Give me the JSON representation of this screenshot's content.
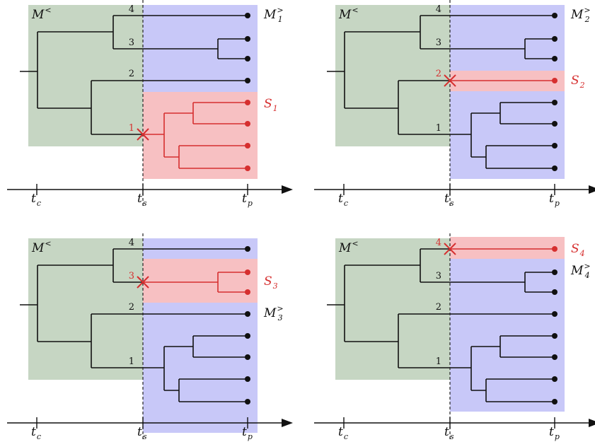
{
  "colors": {
    "past_region": "#c6d6c3",
    "future_region": "#c8c8f8",
    "split_region": "#f7c0c2",
    "lineage": "#111111",
    "split_lineage": "#d62f2f"
  },
  "axis": {
    "labels": [
      {
        "base": "t",
        "sub": "c"
      },
      {
        "base": "t",
        "sub": "s"
      },
      {
        "base": "t",
        "sub": "p"
      }
    ]
  },
  "panels": [
    {
      "past_label": {
        "base": "M",
        "sup": "<"
      },
      "split_lineage": 1,
      "split_label": {
        "base": "S",
        "sub": "1"
      },
      "future_label": {
        "base": "M",
        "sup": ">",
        "sub": "1"
      },
      "branch_numbers": [
        "4",
        "3",
        "2",
        "1"
      ]
    },
    {
      "past_label": {
        "base": "M",
        "sup": "<"
      },
      "split_lineage": 2,
      "split_label": {
        "base": "S",
        "sub": "2"
      },
      "future_label": {
        "base": "M",
        "sup": ">",
        "sub": "2"
      },
      "branch_numbers": [
        "4",
        "3",
        "2",
        "1"
      ]
    },
    {
      "past_label": {
        "base": "M",
        "sup": "<"
      },
      "split_lineage": 3,
      "split_label": {
        "base": "S",
        "sub": "3"
      },
      "future_label": {
        "base": "M",
        "sup": ">",
        "sub": "3"
      },
      "branch_numbers": [
        "4",
        "3",
        "2",
        "1"
      ]
    },
    {
      "past_label": {
        "base": "M",
        "sup": "<"
      },
      "split_lineage": 4,
      "split_label": {
        "base": "S",
        "sub": "4"
      },
      "future_label": {
        "base": "M",
        "sup": ">",
        "sub": "4"
      },
      "branch_numbers": [
        "4",
        "3",
        "2",
        "1"
      ]
    }
  ]
}
